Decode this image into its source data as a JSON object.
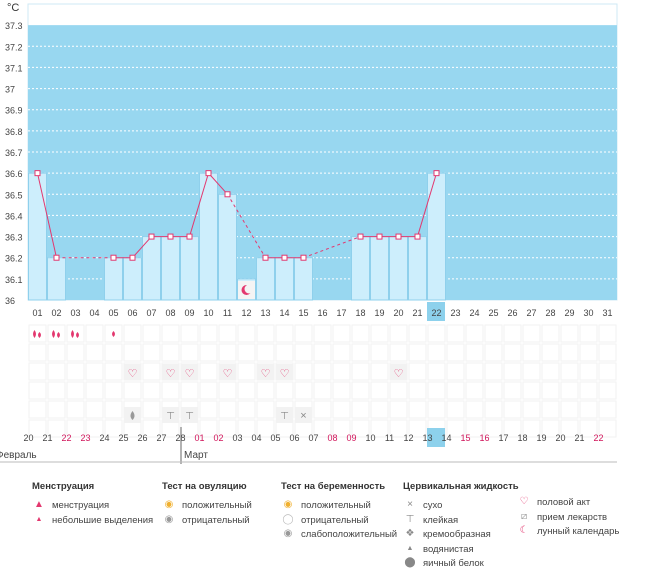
{
  "colors": {
    "plot_bg": "#98d7f0",
    "bar_fill": "#cdeefc",
    "bar_stroke": "#8fd0ec",
    "line": "#e3386f",
    "grid": "#ffffff",
    "weekend": "#d0145a",
    "today_bg": "#8dd1ec",
    "heart": "#e3386f"
  },
  "chart_data": {
    "type": "bar",
    "title": "",
    "ylabel": "°C",
    "ylim": [
      36,
      37.4
    ],
    "yticks": [
      "36",
      "36.1",
      "36.2",
      "36.3",
      "36.4",
      "36.5",
      "36.6",
      "36.7",
      "36.8",
      "36.9",
      "37",
      "37.1",
      "37.2",
      "37.3"
    ],
    "threshold": 37.3,
    "days_top": [
      "01",
      "02",
      "03",
      "04",
      "05",
      "06",
      "07",
      "08",
      "09",
      "10",
      "11",
      "12",
      "13",
      "14",
      "15",
      "16",
      "17",
      "18",
      "19",
      "20",
      "21",
      "22",
      "23",
      "24",
      "25",
      "26",
      "27",
      "28",
      "29",
      "30",
      "31"
    ],
    "highlight_index": 21,
    "values": [
      36.6,
      36.2,
      null,
      null,
      36.2,
      36.2,
      36.3,
      36.3,
      36.3,
      36.6,
      36.5,
      36.1,
      36.2,
      36.2,
      36.2,
      null,
      null,
      36.3,
      36.3,
      36.3,
      36.3,
      36.6,
      null,
      null,
      null,
      null,
      null,
      null,
      null,
      null,
      null
    ],
    "solid_segments": [
      [
        0,
        1
      ],
      [
        4,
        5
      ],
      [
        5,
        6
      ],
      [
        6,
        7
      ],
      [
        7,
        8
      ],
      [
        8,
        9
      ],
      [
        9,
        10
      ],
      [
        12,
        13
      ],
      [
        13,
        14
      ],
      [
        17,
        18
      ],
      [
        18,
        19
      ],
      [
        19,
        20
      ],
      [
        20,
        21
      ]
    ],
    "dashed_segments": [
      [
        1,
        4
      ],
      [
        10,
        12
      ],
      [
        14,
        17
      ]
    ],
    "bottom_dates": [
      "20",
      "21",
      "22",
      "23",
      "24",
      "25",
      "26",
      "27",
      "28",
      "01",
      "02",
      "03",
      "04",
      "05",
      "06",
      "07",
      "08",
      "09",
      "10",
      "11",
      "12",
      "13",
      "14",
      "15",
      "16",
      "17",
      "18",
      "19",
      "20",
      "21",
      "22"
    ],
    "bottom_red": [
      2,
      3,
      9,
      10,
      16,
      17,
      23,
      24,
      30
    ],
    "months": [
      {
        "label": "Февраль",
        "index": 0
      },
      {
        "label": "Март",
        "index": 9
      }
    ]
  },
  "moon_day_index": 11,
  "markers": {
    "menstruation": [
      {
        "day": 0,
        "type": "heavy"
      },
      {
        "day": 1,
        "type": "heavy"
      },
      {
        "day": 2,
        "type": "heavy"
      },
      {
        "day": 4,
        "type": "light"
      }
    ],
    "intercourse": [
      5,
      7,
      8,
      10,
      12,
      13,
      19
    ],
    "fluid": [
      {
        "day": 5,
        "type": "watery"
      },
      {
        "day": 7,
        "type": "sticky"
      },
      {
        "day": 8,
        "type": "sticky"
      },
      {
        "day": 13,
        "type": "sticky"
      },
      {
        "day": 14,
        "type": "dry"
      }
    ]
  },
  "legend": {
    "menstruation": {
      "title": "Менструация",
      "items": [
        "менструация",
        "небольшие выделения"
      ]
    },
    "ovulation": {
      "title": "Тест на овуляцию",
      "items": [
        "положительный",
        "отрицательный"
      ]
    },
    "pregnancy": {
      "title": "Тест на беременность",
      "items": [
        "положительный",
        "отрицательный",
        "слабоположительный"
      ]
    },
    "cervical": {
      "title": "Цервикальная жидкость",
      "items": [
        "сухо",
        "клейкая",
        "кремообразная",
        "водянистая",
        "яичный белок"
      ]
    },
    "other": {
      "items": [
        "половой акт",
        "прием лекарств",
        "лунный календарь"
      ]
    }
  }
}
